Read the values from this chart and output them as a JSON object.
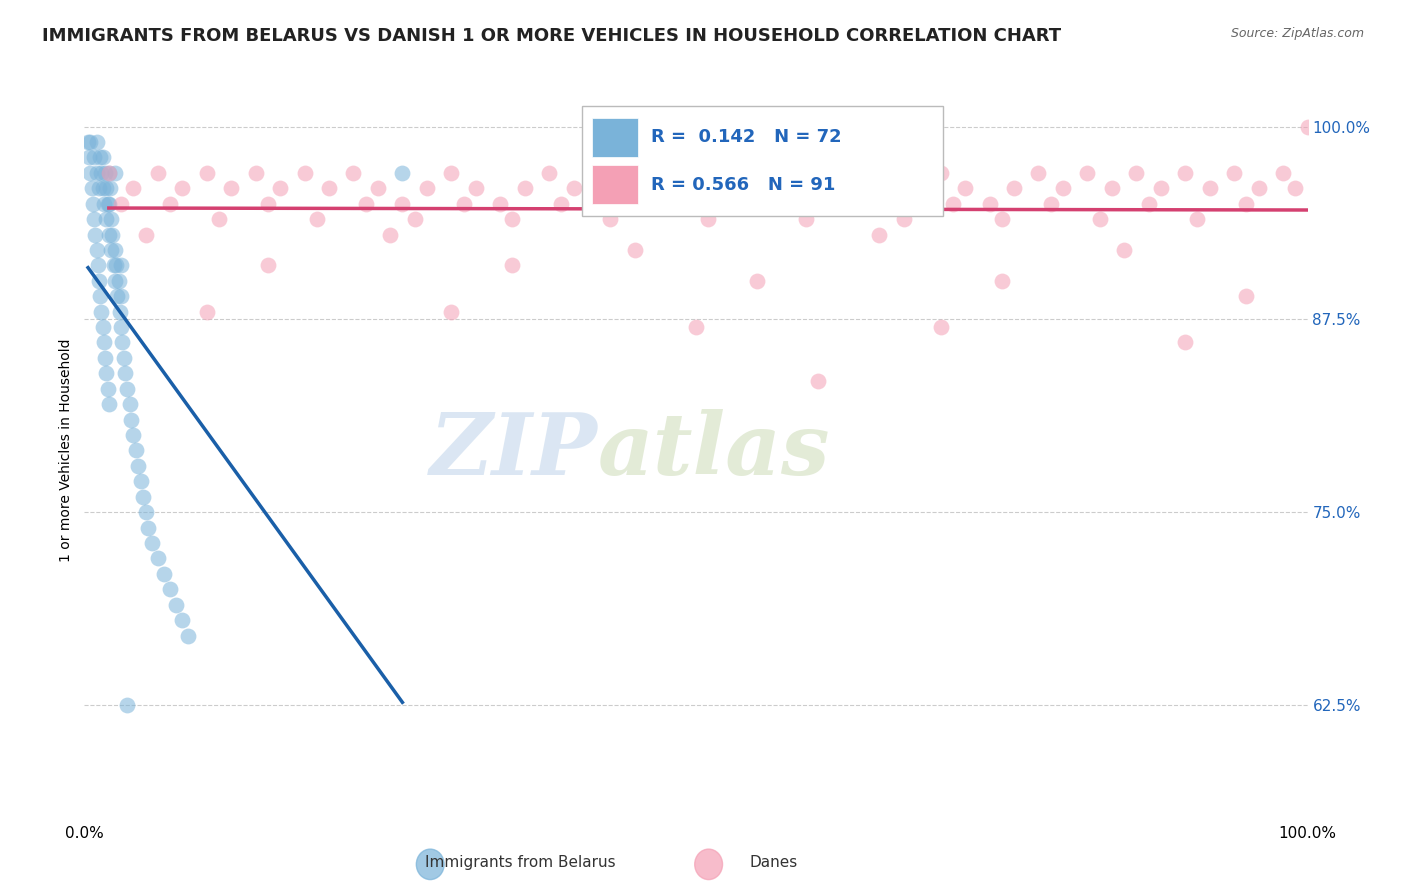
{
  "title": "IMMIGRANTS FROM BELARUS VS DANISH 1 OR MORE VEHICLES IN HOUSEHOLD CORRELATION CHART",
  "source_text": "Source: ZipAtlas.com",
  "ylabel": "1 or more Vehicles in Household",
  "watermark_zip": "ZIP",
  "watermark_atlas": "atlas",
  "legend_blue_R": "0.142",
  "legend_blue_N": "72",
  "legend_pink_R": "0.566",
  "legend_pink_N": "91",
  "xlim": [
    0.0,
    1.0
  ],
  "ylim": [
    0.55,
    1.03
  ],
  "yticks": [
    0.625,
    0.75,
    0.875,
    1.0
  ],
  "ytick_labels": [
    "62.5%",
    "75.0%",
    "87.5%",
    "100.0%"
  ],
  "xtick_labels": [
    "0.0%",
    "100.0%"
  ],
  "blue_color": "#7ab3d9",
  "pink_color": "#f4a0b5",
  "blue_line_color": "#1a5fa8",
  "pink_line_color": "#d44070",
  "background_color": "#ffffff",
  "title_fontsize": 13,
  "blue_scatter_x": [
    0.005,
    0.008,
    0.01,
    0.01,
    0.012,
    0.013,
    0.014,
    0.015,
    0.015,
    0.016,
    0.017,
    0.018,
    0.018,
    0.019,
    0.02,
    0.02,
    0.02,
    0.021,
    0.022,
    0.022,
    0.023,
    0.024,
    0.025,
    0.025,
    0.026,
    0.027,
    0.028,
    0.029,
    0.03,
    0.03,
    0.031,
    0.032,
    0.033,
    0.035,
    0.037,
    0.038,
    0.04,
    0.042,
    0.044,
    0.046,
    0.048,
    0.05,
    0.052,
    0.055,
    0.06,
    0.065,
    0.07,
    0.075,
    0.08,
    0.085,
    0.003,
    0.004,
    0.005,
    0.006,
    0.007,
    0.008,
    0.009,
    0.01,
    0.011,
    0.012,
    0.013,
    0.014,
    0.015,
    0.016,
    0.017,
    0.018,
    0.019,
    0.02,
    0.025,
    0.03,
    0.26,
    0.035
  ],
  "blue_scatter_y": [
    0.99,
    0.98,
    0.97,
    0.99,
    0.96,
    0.98,
    0.97,
    0.96,
    0.98,
    0.95,
    0.97,
    0.96,
    0.94,
    0.95,
    0.97,
    0.95,
    0.93,
    0.96,
    0.94,
    0.92,
    0.93,
    0.91,
    0.92,
    0.9,
    0.91,
    0.89,
    0.9,
    0.88,
    0.89,
    0.87,
    0.86,
    0.85,
    0.84,
    0.83,
    0.82,
    0.81,
    0.8,
    0.79,
    0.78,
    0.77,
    0.76,
    0.75,
    0.74,
    0.73,
    0.72,
    0.71,
    0.7,
    0.69,
    0.68,
    0.67,
    0.99,
    0.98,
    0.97,
    0.96,
    0.95,
    0.94,
    0.93,
    0.92,
    0.91,
    0.9,
    0.89,
    0.88,
    0.87,
    0.86,
    0.85,
    0.84,
    0.83,
    0.82,
    0.97,
    0.91,
    0.97,
    0.625
  ],
  "pink_scatter_x": [
    0.02,
    0.04,
    0.06,
    0.08,
    0.1,
    0.12,
    0.14,
    0.16,
    0.18,
    0.2,
    0.22,
    0.24,
    0.26,
    0.28,
    0.3,
    0.32,
    0.34,
    0.36,
    0.38,
    0.4,
    0.42,
    0.44,
    0.46,
    0.48,
    0.5,
    0.52,
    0.54,
    0.56,
    0.58,
    0.6,
    0.62,
    0.64,
    0.66,
    0.68,
    0.7,
    0.72,
    0.74,
    0.76,
    0.78,
    0.8,
    0.82,
    0.84,
    0.86,
    0.88,
    0.9,
    0.92,
    0.94,
    0.96,
    0.98,
    1.0,
    0.03,
    0.07,
    0.11,
    0.15,
    0.19,
    0.23,
    0.27,
    0.31,
    0.35,
    0.39,
    0.43,
    0.47,
    0.51,
    0.55,
    0.59,
    0.63,
    0.67,
    0.71,
    0.75,
    0.79,
    0.83,
    0.87,
    0.91,
    0.95,
    0.99,
    0.05,
    0.25,
    0.45,
    0.65,
    0.85,
    0.15,
    0.35,
    0.55,
    0.75,
    0.95,
    0.1,
    0.3,
    0.5,
    0.7,
    0.9,
    0.6
  ],
  "pink_scatter_y": [
    0.97,
    0.96,
    0.97,
    0.96,
    0.97,
    0.96,
    0.97,
    0.96,
    0.97,
    0.96,
    0.97,
    0.96,
    0.95,
    0.96,
    0.97,
    0.96,
    0.95,
    0.96,
    0.97,
    0.96,
    0.95,
    0.96,
    0.97,
    0.96,
    0.95,
    0.96,
    0.97,
    0.96,
    0.95,
    0.96,
    0.97,
    0.96,
    0.95,
    0.96,
    0.97,
    0.96,
    0.95,
    0.96,
    0.97,
    0.96,
    0.97,
    0.96,
    0.97,
    0.96,
    0.97,
    0.96,
    0.97,
    0.96,
    0.97,
    1.0,
    0.95,
    0.95,
    0.94,
    0.95,
    0.94,
    0.95,
    0.94,
    0.95,
    0.94,
    0.95,
    0.94,
    0.95,
    0.94,
    0.95,
    0.94,
    0.95,
    0.94,
    0.95,
    0.94,
    0.95,
    0.94,
    0.95,
    0.94,
    0.95,
    0.96,
    0.93,
    0.93,
    0.92,
    0.93,
    0.92,
    0.91,
    0.91,
    0.9,
    0.9,
    0.89,
    0.88,
    0.88,
    0.87,
    0.87,
    0.86,
    0.835
  ]
}
